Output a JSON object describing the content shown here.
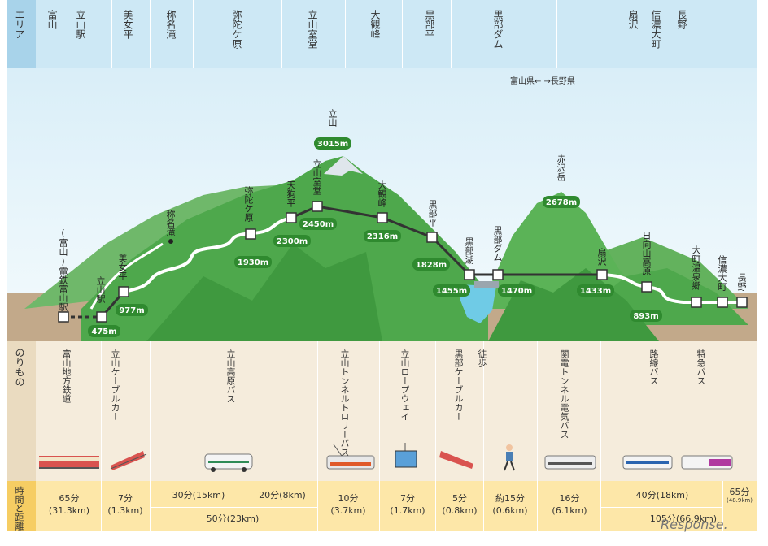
{
  "header": {
    "label": "エリア",
    "areas": [
      "富山",
      "立山駅",
      "美女平",
      "称名滝",
      "弥陀ケ原",
      "立山室堂",
      "大観峰",
      "黒部平",
      "黒部ダム",
      "扇沢",
      "信濃大町",
      "長野"
    ]
  },
  "prefecture_border": "富山県← →長野県",
  "spots": [
    {
      "name": "(富山)電鉄富山駅",
      "elevation": ""
    },
    {
      "name": "立山駅",
      "elevation": "475m"
    },
    {
      "name": "美女平",
      "elevation": "977m"
    },
    {
      "name": "称名滝",
      "elevation": ""
    },
    {
      "name": "弥陀ケ原",
      "elevation": "1930m"
    },
    {
      "name": "天狗平",
      "elevation": "2300m"
    },
    {
      "name": "立山室堂",
      "elevation": "2450m"
    },
    {
      "name": "大観峰",
      "elevation": "2316m"
    },
    {
      "name": "黒部平",
      "elevation": "1828m"
    },
    {
      "name": "黒部湖",
      "elevation": "1455m"
    },
    {
      "name": "黒部ダム",
      "elevation": "1470m"
    },
    {
      "name": "扇沢",
      "elevation": "1433m"
    },
    {
      "name": "日向山高原",
      "elevation": "893m"
    },
    {
      "name": "大町温泉郷",
      "elevation": ""
    },
    {
      "name": "信濃大町",
      "elevation": ""
    },
    {
      "name": "長野",
      "elevation": ""
    }
  ],
  "peaks": [
    {
      "name": "立山",
      "elevation": "3015m"
    },
    {
      "name": "赤沢岳",
      "elevation": "2678m"
    }
  ],
  "vehicles": {
    "label": "のりもの",
    "items": [
      "富山地方鉄道",
      "立山ケーブルカー",
      "立山高原バス",
      "立山トンネルトロリーバス",
      "立山ロープウェイ",
      "黒部ケーブルカー",
      "徒歩",
      "関電トンネル電気バス",
      "路線バス",
      "特急バス"
    ]
  },
  "times": {
    "label": "時間と距離",
    "items": [
      {
        "time": "65分",
        "dist": "(31.3km)"
      },
      {
        "time": "7分",
        "dist": "(1.3km)"
      },
      {
        "time": "30分(15km)",
        "dist": ""
      },
      {
        "time": "20分(8km)",
        "dist": ""
      },
      {
        "time": "50分(23km)",
        "dist": ""
      },
      {
        "time": "10分",
        "dist": "(3.7km)"
      },
      {
        "time": "7分",
        "dist": "(1.7km)"
      },
      {
        "time": "5分",
        "dist": "(0.8km)"
      },
      {
        "time": "約15分",
        "dist": "(0.6km)"
      },
      {
        "time": "16分",
        "dist": "(6.1km)"
      },
      {
        "time": "40分(18km)",
        "dist": ""
      },
      {
        "time": "105分(66.9km)",
        "dist": ""
      },
      {
        "time": "65分",
        "dist": "(48.9km)"
      }
    ]
  },
  "watermark": "Response.",
  "colors": {
    "mountain": "#4a9e4a",
    "elevation_badge": "#2f8a2f",
    "header": "#cde8f5",
    "vehicle_zone": "#f5ecdc",
    "time_zone": "#fde7a8"
  }
}
